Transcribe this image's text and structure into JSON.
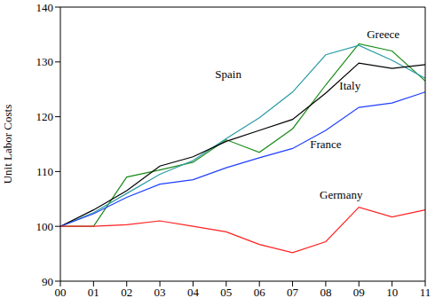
{
  "chart_data": {
    "type": "line",
    "y_label": "Unit Labor Costs",
    "categories": [
      "00",
      "01",
      "02",
      "03",
      "04",
      "05",
      "06",
      "07",
      "08",
      "09",
      "10",
      "11"
    ],
    "ylim": [
      90,
      140
    ],
    "yticks": [
      90,
      100,
      110,
      120,
      130,
      140
    ],
    "grid": false,
    "series": [
      {
        "name": "Greece",
        "color": "#1a8c1a",
        "values": [
          100,
          100,
          109,
          110.3,
          111.7,
          115.8,
          113.5,
          117.8,
          125.8,
          133.3,
          132,
          126.5
        ]
      },
      {
        "name": "Spain",
        "color": "#2a9aa5",
        "values": [
          100,
          102.5,
          106,
          109.5,
          112,
          116,
          119.8,
          124.5,
          131.3,
          133,
          130.3,
          127
        ]
      },
      {
        "name": "Italy",
        "color": "#000000",
        "values": [
          100,
          103,
          106.5,
          111,
          112.7,
          115.5,
          117.5,
          119.5,
          124.3,
          129.8,
          128.8,
          129.5
        ]
      },
      {
        "name": "France",
        "color": "#1f3fff",
        "values": [
          100,
          102.3,
          105.3,
          107.7,
          108.5,
          110.7,
          112.5,
          114.2,
          117.5,
          121.7,
          122.5,
          124.5
        ]
      },
      {
        "name": "Germany",
        "color": "#ff2020",
        "values": [
          100,
          100,
          100.3,
          101,
          100,
          99,
          96.7,
          95.2,
          97.2,
          103.5,
          101.7,
          103
        ]
      }
    ]
  }
}
